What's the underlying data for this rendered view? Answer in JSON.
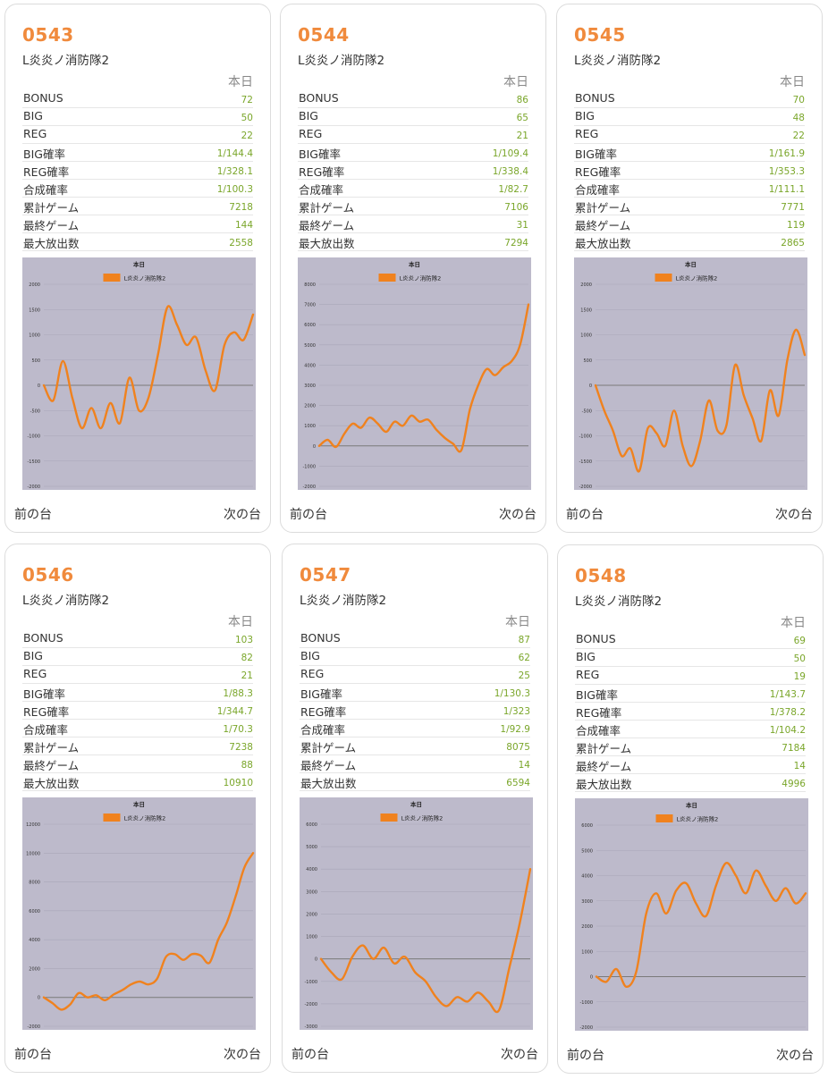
{
  "ui": {
    "today_label": "本日",
    "prev_label": "前の台",
    "next_label": "次の台",
    "stat_labels": [
      "BONUS",
      "BIG",
      "REG",
      "BIG確率",
      "REG確率",
      "合成確率",
      "累計ゲーム",
      "最終ゲーム",
      "最大放出数"
    ]
  },
  "colors": {
    "accent": "#f08a3c",
    "value": "#7aa62a",
    "plot_bg": "#bdbacb",
    "line": "#f0821e"
  },
  "machines": [
    {
      "number": "0543",
      "model": "L炎炎ノ消防隊2",
      "stats": [
        "72",
        "50",
        "22",
        "1/144.4",
        "1/328.1",
        "1/100.3",
        "7218",
        "144",
        "2558"
      ]
    },
    {
      "number": "0544",
      "model": "L炎炎ノ消防隊2",
      "stats": [
        "86",
        "65",
        "21",
        "1/109.4",
        "1/338.4",
        "1/82.7",
        "7106",
        "31",
        "7294"
      ]
    },
    {
      "number": "0545",
      "model": "L炎炎ノ消防隊2",
      "stats": [
        "70",
        "48",
        "22",
        "1/161.9",
        "1/353.3",
        "1/111.1",
        "7771",
        "119",
        "2865"
      ]
    },
    {
      "number": "0546",
      "model": "L炎炎ノ消防隊2",
      "stats": [
        "103",
        "82",
        "21",
        "1/88.3",
        "1/344.7",
        "1/70.3",
        "7238",
        "88",
        "10910"
      ]
    },
    {
      "number": "0547",
      "model": "L炎炎ノ消防隊2",
      "stats": [
        "87",
        "62",
        "25",
        "1/130.3",
        "1/323",
        "1/92.9",
        "8075",
        "14",
        "6594"
      ]
    },
    {
      "number": "0548",
      "model": "L炎炎ノ消防隊2",
      "stats": [
        "69",
        "50",
        "19",
        "1/143.7",
        "1/378.2",
        "1/104.2",
        "7184",
        "14",
        "4996"
      ]
    }
  ],
  "chart_data": [
    {
      "type": "line",
      "title": "本日",
      "series_name": "L炎炎ノ消防隊2",
      "ylim": [
        -2000,
        2000
      ],
      "yticks": [
        -2000,
        -1500,
        -1000,
        -500,
        0,
        500,
        1000,
        1500,
        2000
      ],
      "values": [
        0,
        -300,
        480,
        -250,
        -850,
        -450,
        -850,
        -350,
        -750,
        150,
        -500,
        -250,
        600,
        1550,
        1200,
        800,
        950,
        300,
        -100,
        800,
        1050,
        900,
        1400
      ]
    },
    {
      "type": "line",
      "title": "本日",
      "series_name": "L炎炎ノ消防隊2",
      "ylim": [
        -2000,
        8000
      ],
      "yticks": [
        -2000,
        -1000,
        0,
        1000,
        2000,
        3000,
        4000,
        5000,
        6000,
        7000,
        8000
      ],
      "values": [
        0,
        300,
        -50,
        600,
        1100,
        900,
        1400,
        1100,
        700,
        1200,
        1000,
        1500,
        1200,
        1300,
        800,
        400,
        100,
        -200,
        1800,
        3000,
        3800,
        3500,
        3900,
        4200,
        5000,
        7000
      ]
    },
    {
      "type": "line",
      "title": "本日",
      "series_name": "L炎炎ノ消防隊2",
      "ylim": [
        -2000,
        2000
      ],
      "yticks": [
        -2000,
        -1500,
        -1000,
        -500,
        0,
        500,
        1000,
        1500,
        2000
      ],
      "values": [
        0,
        -500,
        -900,
        -1400,
        -1250,
        -1700,
        -850,
        -950,
        -1200,
        -500,
        -1200,
        -1600,
        -1100,
        -300,
        -900,
        -800,
        400,
        -200,
        -650,
        -1100,
        -100,
        -600,
        500,
        1100,
        600
      ]
    },
    {
      "type": "line",
      "title": "本日",
      "series_name": "L炎炎ノ消防隊2",
      "ylim": [
        -2000,
        12000
      ],
      "yticks": [
        -2000,
        0,
        2000,
        4000,
        6000,
        8000,
        10000,
        12000
      ],
      "values": [
        0,
        -400,
        -850,
        -500,
        300,
        0,
        150,
        -200,
        200,
        500,
        900,
        1100,
        900,
        1300,
        2800,
        3000,
        2600,
        3000,
        2900,
        2400,
        4000,
        5200,
        7000,
        9000,
        10000
      ]
    },
    {
      "type": "line",
      "title": "本日",
      "series_name": "L炎炎ノ消防隊2",
      "ylim": [
        -3000,
        6000
      ],
      "yticks": [
        -3000,
        -2000,
        -1000,
        0,
        1000,
        2000,
        3000,
        4000,
        5000,
        6000
      ],
      "values": [
        0,
        -600,
        -900,
        100,
        600,
        0,
        500,
        -200,
        100,
        -600,
        -1000,
        -1700,
        -2100,
        -1700,
        -1900,
        -1500,
        -1900,
        -2300,
        -400,
        1600,
        4000
      ]
    },
    {
      "type": "line",
      "title": "本日",
      "series_name": "L炎炎ノ消防隊2",
      "ylim": [
        -2000,
        6000
      ],
      "yticks": [
        -2000,
        -1000,
        0,
        1000,
        2000,
        3000,
        4000,
        5000,
        6000
      ],
      "values": [
        0,
        -200,
        300,
        -400,
        200,
        2500,
        3300,
        2500,
        3400,
        3700,
        2900,
        2400,
        3600,
        4500,
        4000,
        3300,
        4200,
        3600,
        3000,
        3500,
        2900,
        3300
      ]
    }
  ]
}
